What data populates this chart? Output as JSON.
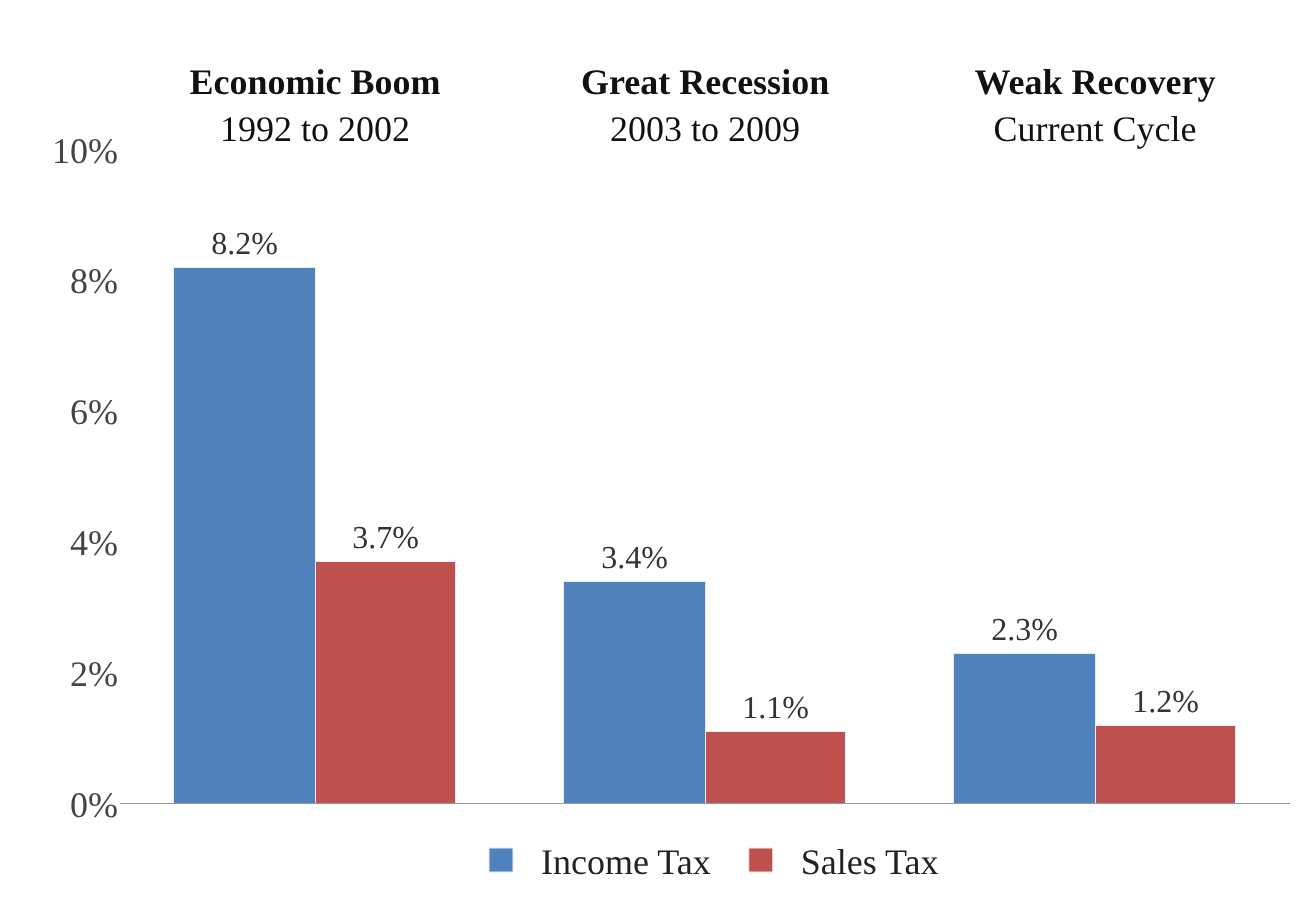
{
  "chart_data": {
    "type": "bar",
    "categories": [
      "Economic Boom\n1992 to 2002",
      "Great Recession\n2003 to 2009",
      "Weak Recovery\nCurrent Cycle"
    ],
    "series": [
      {
        "name": "Income Tax",
        "color": "#4f81bd",
        "values": [
          8.2,
          3.4,
          2.3
        ],
        "value_labels": [
          "8.2%",
          "3.4%",
          "2.3%"
        ]
      },
      {
        "name": "Sales Tax",
        "color": "#c0504d",
        "values": [
          3.7,
          1.1,
          1.2
        ],
        "value_labels": [
          "3.7%",
          "1.1%",
          "1.2%"
        ]
      }
    ],
    "ylim": [
      0,
      10
    ],
    "yticks": [
      {
        "value": 0,
        "label": "0%"
      },
      {
        "value": 2,
        "label": "2%"
      },
      {
        "value": 4,
        "label": "4%"
      },
      {
        "value": 6,
        "label": "6%"
      },
      {
        "value": 8,
        "label": "8%"
      },
      {
        "value": 10,
        "label": "10%"
      }
    ],
    "legend": "bottom"
  }
}
